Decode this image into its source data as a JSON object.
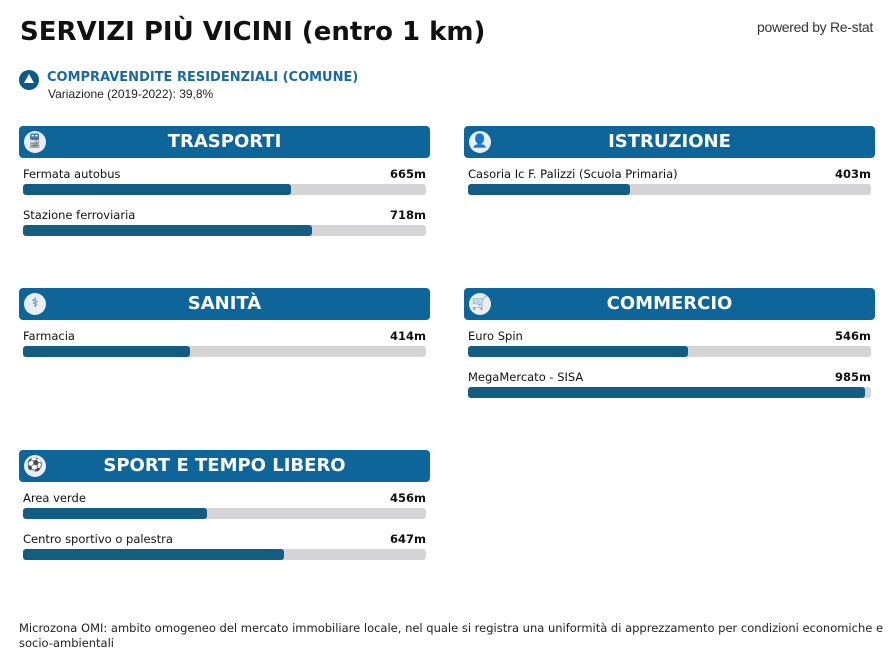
{
  "title": "SERVIZI PIÙ VICINI (entro 1 km)",
  "powered_by": "powered by Re-stat",
  "stat": {
    "title": "COMPRAVENDITE RESIDENZIALI (COMUNE)",
    "subtitle": "Variazione (2019-2022): 39,8%"
  },
  "colors": {
    "header": "#0d6599",
    "bar_fill": "#135c82",
    "bar_track": "#d4d4d6"
  },
  "panels": [
    {
      "title": "TRASPORTI",
      "icon": "train-icon",
      "items": [
        {
          "label": "Fermata autobus",
          "value": "665m",
          "fraction": 0.665
        },
        {
          "label": "Stazione ferroviaria",
          "value": "718m",
          "fraction": 0.718
        }
      ]
    },
    {
      "title": "ISTRUZIONE",
      "icon": "student-icon",
      "items": [
        {
          "label": "Casoria Ic F. Palizzi (Scuola Primaria)",
          "value": "403m",
          "fraction": 0.403
        }
      ]
    },
    {
      "title": "SANITÀ",
      "icon": "pharmacy-icon",
      "items": [
        {
          "label": "Farmacia",
          "value": "414m",
          "fraction": 0.414
        }
      ]
    },
    {
      "title": "COMMERCIO",
      "icon": "cart-icon",
      "items": [
        {
          "label": "Euro Spin",
          "value": "546m",
          "fraction": 0.546
        },
        {
          "label": "MegaMercato - SISA",
          "value": "985m",
          "fraction": 0.985
        }
      ]
    },
    {
      "title": "SPORT E TEMPO LIBERO",
      "icon": "sport-icon",
      "items": [
        {
          "label": "Area verde",
          "value": "456m",
          "fraction": 0.456
        },
        {
          "label": "Centro sportivo o palestra",
          "value": "647m",
          "fraction": 0.647
        }
      ]
    }
  ],
  "footer": "Microzona OMI: ambito omogeneo del mercato immobiliare locale, nel quale si registra una uniformità di apprezzamento per condizioni economiche e socio-ambientali"
}
